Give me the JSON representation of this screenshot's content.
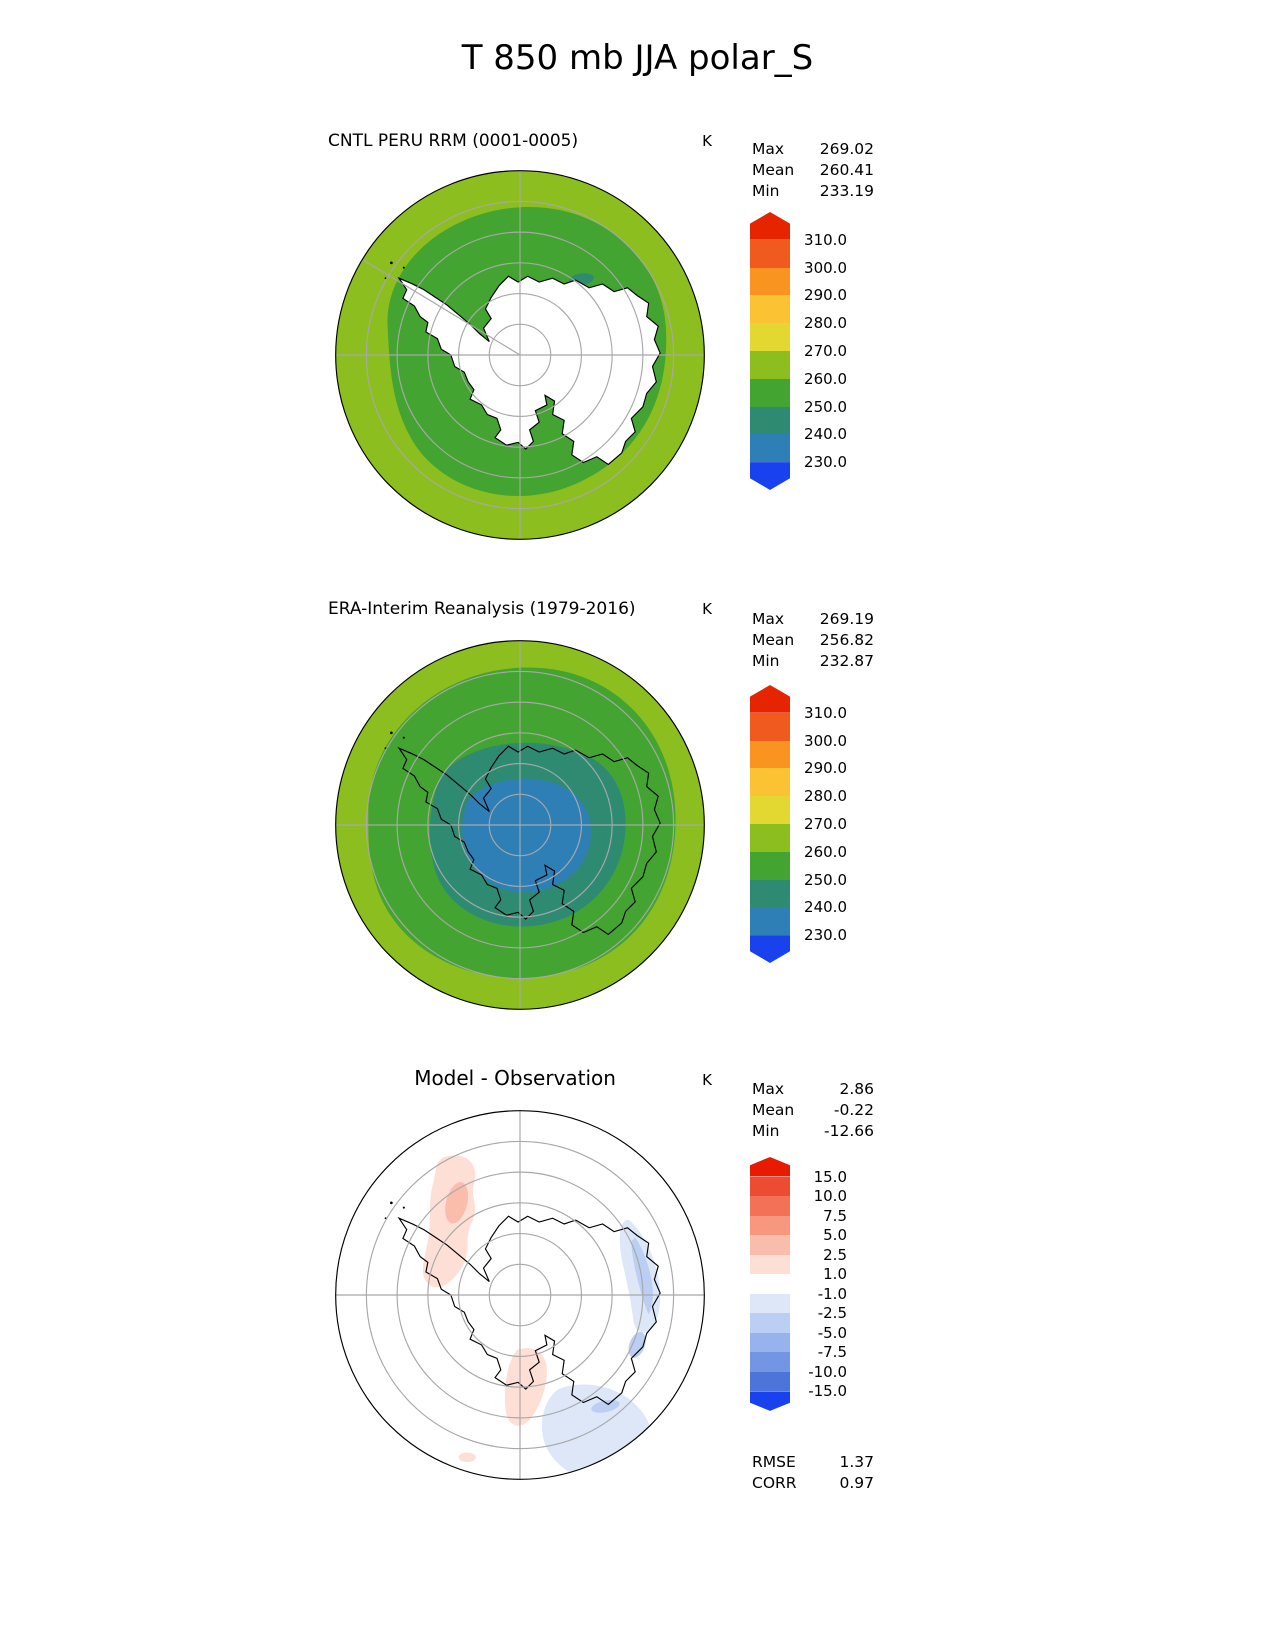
{
  "title": "T 850 mb JJA polar_S",
  "panels": [
    {
      "title": "CNTL PERU RRM (0001-0005)",
      "unit": "K",
      "stats": {
        "max_label": "Max",
        "max": "269.02",
        "mean_label": "Mean",
        "mean": "260.41",
        "min_label": "Min",
        "min": "233.19"
      },
      "colorbar": {
        "colors": [
          "#e62500",
          "#f05a1e",
          "#f8941f",
          "#fbc233",
          "#e3d832",
          "#8dbe1f",
          "#43a432",
          "#2e8b72",
          "#2f7fb7",
          "#1a41ee"
        ],
        "ticks": [
          "310.0",
          "300.0",
          "290.0",
          "280.0",
          "270.0",
          "260.0",
          "250.0",
          "240.0",
          "230.0"
        ]
      }
    },
    {
      "title": "ERA-Interim Reanalysis (1979-2016)",
      "unit": "K",
      "stats": {
        "max_label": "Max",
        "max": "269.19",
        "mean_label": "Mean",
        "mean": "256.82",
        "min_label": "Min",
        "min": "232.87"
      },
      "colorbar": {
        "colors": [
          "#e62500",
          "#f05a1e",
          "#f8941f",
          "#fbc233",
          "#e3d832",
          "#8dbe1f",
          "#43a432",
          "#2e8b72",
          "#2f7fb7",
          "#1a41ee"
        ],
        "ticks": [
          "310.0",
          "300.0",
          "290.0",
          "280.0",
          "270.0",
          "260.0",
          "250.0",
          "240.0",
          "230.0"
        ]
      }
    },
    {
      "title": "Model - Observation",
      "unit": "K",
      "stats": {
        "max_label": "Max",
        "max": "2.86",
        "mean_label": "Mean",
        "mean": "-0.22",
        "min_label": "Min",
        "min": "-12.66"
      },
      "colorbar": {
        "colors": [
          "#e81b00",
          "#ee4b33",
          "#f37257",
          "#f7977d",
          "#fabcab",
          "#fddfd5",
          "#ffffff",
          "#dde7f8",
          "#bbcef3",
          "#97b2ec",
          "#7495e3",
          "#4d74d9",
          "#1a41ee"
        ],
        "ticks": [
          "15.0",
          "10.0",
          "7.5",
          "5.0",
          "2.5",
          "1.0",
          "-1.0",
          "-2.5",
          "-5.0",
          "-7.5",
          "-10.0",
          "-15.0"
        ]
      },
      "extra": {
        "rmse_label": "RMSE",
        "rmse": "1.37",
        "corr_label": "CORR",
        "corr": "0.97"
      }
    }
  ],
  "map_colors": {
    "band_260_270": "#8dbe1f",
    "band_250_260": "#43a432",
    "band_240_250": "#2e8b72",
    "band_230_240": "#2f7fb7",
    "land_mask": "#ffffff",
    "diff_background": "#ffffff",
    "diff_red_light": "#fddfd5",
    "diff_red_mid": "#fabcab",
    "diff_blue_light": "#dde7f8",
    "diff_blue_mid": "#bbcef3",
    "coastline": "#000000",
    "graticule": "#a8a8a8",
    "map_outline": "#000000"
  },
  "chart_data": [
    {
      "type": "heatmap",
      "projection": "polar_S (south polar stereographic)",
      "variable": "T 850 mb",
      "season": "JJA",
      "title": "CNTL PERU RRM (0001-0005)",
      "units": "K",
      "contour_levels": [
        230,
        240,
        250,
        260,
        270,
        280,
        290,
        300,
        310
      ],
      "stats": {
        "max": 269.02,
        "mean": 260.41,
        "min": 233.19
      }
    },
    {
      "type": "heatmap",
      "projection": "polar_S (south polar stereographic)",
      "variable": "T 850 mb",
      "season": "JJA",
      "title": "ERA-Interim Reanalysis (1979-2016)",
      "units": "K",
      "contour_levels": [
        230,
        240,
        250,
        260,
        270,
        280,
        290,
        300,
        310
      ],
      "stats": {
        "max": 269.19,
        "mean": 256.82,
        "min": 232.87
      }
    },
    {
      "type": "heatmap",
      "projection": "polar_S (south polar stereographic)",
      "variable": "T 850 mb difference",
      "season": "JJA",
      "title": "Model - Observation",
      "units": "K",
      "contour_levels": [
        -15,
        -10,
        -7.5,
        -5,
        -2.5,
        -1,
        1,
        2.5,
        5,
        7.5,
        10,
        15
      ],
      "stats": {
        "max": 2.86,
        "mean": -0.22,
        "min": -12.66,
        "rmse": 1.37,
        "corr": 0.97
      }
    }
  ]
}
